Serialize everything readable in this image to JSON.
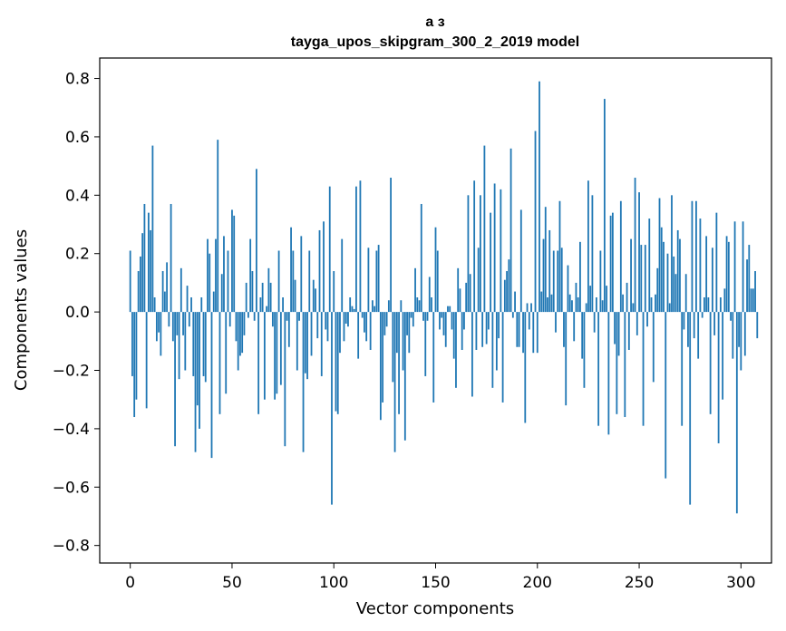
{
  "chart_data": {
    "type": "bar",
    "title_line1": "а з",
    "title_line2": "tayga_upos_skipgram_300_2_2019 model",
    "xlabel": "Vector components",
    "ylabel": "Components values",
    "xlim": [
      -15,
      315
    ],
    "ylim": [
      -0.86,
      0.87
    ],
    "xticks": [
      0,
      50,
      100,
      150,
      200,
      250,
      300
    ],
    "xtick_labels": [
      "0",
      "50",
      "100",
      "150",
      "200",
      "250",
      "300"
    ],
    "yticks": [
      -0.8,
      -0.6,
      -0.4,
      -0.2,
      0.0,
      0.2,
      0.4,
      0.6,
      0.8
    ],
    "ytick_labels": [
      "−0.8",
      "−0.6",
      "−0.4",
      "−0.2",
      "0.0",
      "0.2",
      "0.4",
      "0.6",
      "0.8"
    ],
    "bar_color": "#1f77b4",
    "categories_start": 0,
    "values": [
      0.21,
      -0.22,
      -0.36,
      -0.3,
      0.14,
      0.19,
      0.27,
      0.37,
      -0.33,
      0.34,
      0.28,
      0.57,
      0.05,
      -0.1,
      -0.07,
      -0.15,
      0.14,
      0.07,
      0.17,
      -0.05,
      0.37,
      -0.1,
      -0.46,
      -0.08,
      -0.23,
      0.15,
      -0.08,
      -0.2,
      0.09,
      -0.05,
      0.05,
      -0.22,
      -0.48,
      -0.32,
      -0.4,
      0.05,
      -0.22,
      -0.24,
      0.25,
      0.2,
      -0.5,
      0.07,
      0.25,
      0.59,
      -0.35,
      0.13,
      0.26,
      -0.28,
      0.21,
      -0.05,
      0.35,
      0.33,
      -0.1,
      -0.2,
      -0.15,
      -0.14,
      -0.08,
      0.1,
      -0.02,
      0.25,
      0.14,
      -0.03,
      0.49,
      -0.35,
      0.05,
      0.1,
      -0.3,
      0.02,
      0.15,
      0.1,
      -0.05,
      -0.3,
      -0.28,
      0.21,
      -0.25,
      0.05,
      -0.46,
      -0.03,
      -0.12,
      0.29,
      0.21,
      0.11,
      -0.2,
      -0.03,
      0.26,
      -0.48,
      -0.21,
      -0.23,
      0.21,
      -0.15,
      0.11,
      0.08,
      -0.09,
      0.28,
      -0.22,
      0.31,
      -0.06,
      -0.1,
      0.43,
      -0.66,
      0.14,
      -0.34,
      -0.35,
      -0.14,
      0.25,
      -0.1,
      -0.04,
      -0.05,
      0.05,
      0.02,
      0.01,
      0.43,
      -0.16,
      0.45,
      -0.02,
      -0.07,
      -0.1,
      0.22,
      -0.13,
      0.04,
      0.02,
      0.21,
      0.23,
      -0.37,
      -0.31,
      -0.08,
      -0.05,
      0.04,
      0.46,
      -0.24,
      -0.48,
      -0.14,
      -0.35,
      0.04,
      -0.2,
      -0.44,
      -0.08,
      -0.14,
      -0.02,
      -0.05,
      0.15,
      0.05,
      0.04,
      0.37,
      -0.03,
      -0.22,
      -0.03,
      0.12,
      0.05,
      -0.31,
      0.29,
      0.21,
      -0.06,
      -0.02,
      -0.08,
      -0.12,
      0.02,
      0.02,
      -0.06,
      -0.16,
      -0.26,
      0.15,
      0.08,
      -0.13,
      -0.06,
      0.1,
      0.4,
      0.13,
      -0.29,
      0.45,
      -0.13,
      0.22,
      0.4,
      -0.12,
      0.57,
      -0.11,
      -0.06,
      0.34,
      -0.26,
      0.44,
      -0.2,
      -0.09,
      0.42,
      -0.31,
      0.11,
      0.14,
      0.18,
      0.56,
      -0.02,
      0.07,
      -0.12,
      -0.12,
      0.35,
      -0.14,
      -0.38,
      0.03,
      -0.06,
      0.03,
      -0.14,
      0.62,
      -0.14,
      0.79,
      0.07,
      0.25,
      0.36,
      0.05,
      0.28,
      0.06,
      0.21,
      -0.07,
      0.21,
      0.38,
      0.22,
      -0.12,
      -0.32,
      0.16,
      0.06,
      0.04,
      -0.1,
      0.1,
      0.05,
      0.24,
      -0.16,
      -0.26,
      0.03,
      0.45,
      0.09,
      0.4,
      -0.07,
      0.05,
      -0.39,
      0.21,
      0.04,
      0.73,
      0.09,
      -0.42,
      0.33,
      0.34,
      -0.11,
      -0.35,
      -0.15,
      0.38,
      0.06,
      -0.36,
      0.1,
      -0.13,
      0.25,
      0.03,
      0.46,
      -0.08,
      0.41,
      0.23,
      -0.39,
      0.23,
      -0.05,
      0.32,
      0.05,
      -0.24,
      0.06,
      0.15,
      0.39,
      0.29,
      0.24,
      -0.57,
      0.2,
      0.03,
      0.4,
      0.19,
      0.13,
      0.28,
      0.25,
      -0.39,
      -0.06,
      0.13,
      -0.12,
      -0.66,
      0.38,
      -0.09,
      0.38,
      -0.16,
      0.32,
      -0.02,
      0.05,
      0.26,
      0.05,
      -0.35,
      0.22,
      -0.08,
      0.34,
      -0.45,
      0.05,
      -0.3,
      0.08,
      0.26,
      0.24,
      -0.03,
      -0.16,
      0.31,
      -0.69,
      -0.12,
      -0.2,
      0.31,
      -0.15,
      0.18,
      0.23,
      0.08,
      0.08,
      0.14,
      -0.09
    ]
  }
}
